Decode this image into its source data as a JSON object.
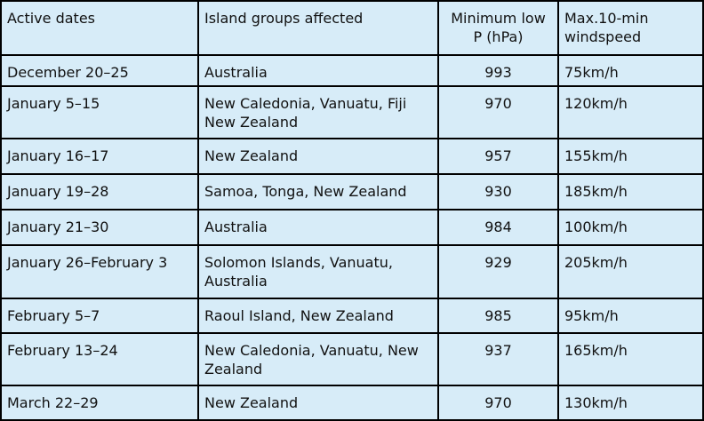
{
  "table": {
    "header": [
      "Active dates",
      "Island groups affected",
      "Minimum low P (hPa)",
      "Max.10-min windspeed"
    ],
    "rows": [
      [
        "December 20–25",
        "Australia",
        "993",
        "75km/h"
      ],
      [
        "January 5–15",
        "New Caledonia, Vanuatu, Fiji New Zealand",
        "970",
        "120km/h"
      ],
      [
        "January 16–17",
        "New Zealand",
        "957",
        "155km/h"
      ],
      [
        "January 19–28",
        "Samoa, Tonga, New Zealand",
        "930",
        "185km/h"
      ],
      [
        "January 21–30",
        "Australia",
        "984",
        "100km/h"
      ],
      [
        "January 26–February 3",
        "Solomon Islands, Vanuatu, Australia",
        "929",
        "205km/h"
      ],
      [
        "February 5–7",
        "Raoul Island, New Zealand",
        "985",
        "95km/h"
      ],
      [
        "February 13–24",
        "New Caledonia, Vanuatu, New Zealand",
        "937",
        "165km/h"
      ],
      [
        "March 22–29",
        "New Zealand",
        "970",
        "130km/h"
      ]
    ]
  }
}
